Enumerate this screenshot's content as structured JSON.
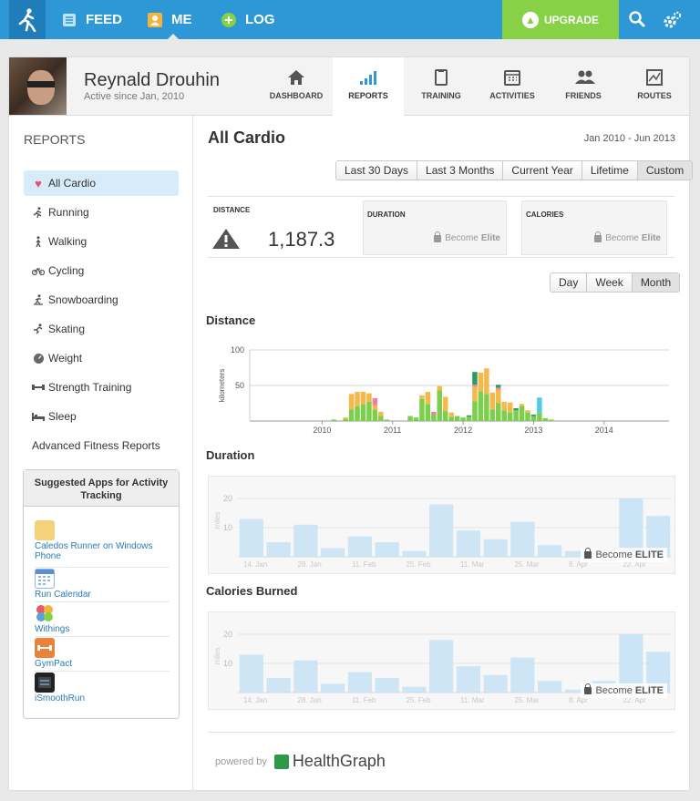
{
  "nav": {
    "feed": "FEED",
    "me": "ME",
    "log": "LOG",
    "upgrade": "UPGRADE"
  },
  "profile": {
    "name": "Reynald Drouhin",
    "since": "Active since Jan, 2010"
  },
  "tabs": [
    {
      "label": "DASHBOARD",
      "icon": "home-icon"
    },
    {
      "label": "REPORTS",
      "icon": "bars-icon",
      "active": true
    },
    {
      "label": "TRAINING",
      "icon": "clipboard-icon"
    },
    {
      "label": "ACTIVITIES",
      "icon": "calendar-icon"
    },
    {
      "label": "FRIENDS",
      "icon": "friends-icon"
    },
    {
      "label": "ROUTES",
      "icon": "map-icon"
    }
  ],
  "sidebar": {
    "title": "REPORTS",
    "items": [
      {
        "label": "All Cardio",
        "icon": "heart-icon"
      },
      {
        "label": "Running",
        "icon": "runner-icon"
      },
      {
        "label": "Walking",
        "icon": "walker-icon"
      },
      {
        "label": "Cycling",
        "icon": "bike-icon"
      },
      {
        "label": "Snowboarding",
        "icon": "snowboard-icon"
      },
      {
        "label": "Skating",
        "icon": "skater-icon"
      },
      {
        "label": "Weight",
        "icon": "scale-icon"
      },
      {
        "label": "Strength Training",
        "icon": "dumbbell-icon"
      },
      {
        "label": "Sleep",
        "icon": "bed-icon"
      }
    ],
    "advanced": "Advanced Fitness Reports",
    "apps_title": "Suggested Apps for Activity Tracking",
    "apps": [
      {
        "name": "Caledos Runner on Windows Phone",
        "color": "#f2d27a"
      },
      {
        "name": "Run Calendar",
        "color": "#8fb7e0"
      },
      {
        "name": "Withings",
        "color": "#e35e64"
      },
      {
        "name": "GymPact",
        "color": "#e9823a"
      },
      {
        "name": "iSmoothRun",
        "color": "#222222"
      }
    ]
  },
  "content": {
    "title": "All Cardio",
    "range": "Jan 2010 - Jun 2013",
    "range_buttons": [
      "Last 30 Days",
      "Last 3 Months",
      "Current Year",
      "Lifetime",
      "Custom"
    ],
    "period_buttons": [
      "Day",
      "Week",
      "Month"
    ],
    "stats": {
      "distance_label": "DISTANCE",
      "distance_value": "1,187.3",
      "duration_label": "DURATION",
      "calories_label": "CALORIES",
      "become": "Become",
      "elite": "Elite"
    },
    "sections": {
      "distance": "Distance",
      "duration": "Duration",
      "calories": "Calories Burned"
    },
    "become_elite": "Become",
    "elite_caps": "ELITE",
    "powered": "powered by",
    "healthgraph": "HealthGraph"
  },
  "chart_data": [
    {
      "type": "bar",
      "title": "Distance",
      "ylabel": "kilometers",
      "ylim": [
        0,
        100
      ],
      "yticks": [
        100,
        50
      ],
      "xticks": [
        "2010",
        "2011",
        "2012",
        "2013",
        "2014"
      ],
      "x_month_start": "2009-01",
      "colors": {
        "green": "#7ccf4c",
        "orange": "#f5b84a",
        "pink": "#ef7fa8",
        "teal": "#2d9b62",
        "cyan": "#51c9e8"
      },
      "series": [
        {
          "name": "green",
          "values": [
            [
              14,
              2
            ],
            [
              16,
              3
            ],
            [
              17,
              16
            ],
            [
              18,
              21
            ],
            [
              19,
              24
            ],
            [
              20,
              27
            ],
            [
              21,
              16
            ],
            [
              22,
              7
            ],
            [
              23,
              2
            ],
            [
              27,
              7
            ],
            [
              28,
              5
            ],
            [
              29,
              31
            ],
            [
              30,
              24
            ],
            [
              31,
              9
            ],
            [
              32,
              43
            ],
            [
              33,
              14
            ],
            [
              34,
              6
            ],
            [
              35,
              7
            ],
            [
              36,
              5
            ],
            [
              37,
              6
            ],
            [
              38,
              28
            ],
            [
              39,
              42
            ],
            [
              40,
              38
            ],
            [
              41,
              16
            ],
            [
              42,
              25
            ],
            [
              43,
              15
            ],
            [
              44,
              12
            ],
            [
              45,
              15
            ],
            [
              46,
              21
            ],
            [
              47,
              12
            ],
            [
              48,
              7
            ],
            [
              49,
              12
            ],
            [
              50,
              4
            ],
            [
              51,
              2
            ]
          ]
        },
        {
          "name": "orange",
          "values": [
            [
              16,
              2
            ],
            [
              17,
              22
            ],
            [
              18,
              20
            ],
            [
              19,
              17
            ],
            [
              20,
              12
            ],
            [
              21,
              6
            ],
            [
              22,
              6
            ],
            [
              29,
              5
            ],
            [
              30,
              17
            ],
            [
              32,
              6
            ],
            [
              33,
              20
            ],
            [
              34,
              6
            ],
            [
              38,
              20
            ],
            [
              39,
              26
            ],
            [
              40,
              36
            ],
            [
              41,
              24
            ],
            [
              42,
              19
            ],
            [
              43,
              12
            ],
            [
              44,
              14
            ],
            [
              46,
              3
            ],
            [
              47,
              3
            ]
          ]
        },
        {
          "name": "pink",
          "values": [
            [
              21,
              10
            ],
            [
              31,
              4
            ],
            [
              38,
              3
            ],
            [
              42,
              3
            ]
          ]
        },
        {
          "name": "teal",
          "values": [
            [
              37,
              2
            ],
            [
              38,
              18
            ],
            [
              42,
              4
            ],
            [
              45,
              3
            ],
            [
              48,
              2
            ]
          ]
        },
        {
          "name": "cyan",
          "values": [
            [
              49,
              21
            ]
          ]
        }
      ]
    },
    {
      "type": "bar",
      "title": "Duration",
      "ylabel": "miles",
      "ylim": [
        0,
        25
      ],
      "yticks": [
        20,
        10
      ],
      "categories": [
        "14. Jan",
        "",
        "28. Jan",
        "",
        "11. Feb",
        "",
        "25. Feb",
        "",
        "11. Mar",
        "",
        "25. Mar",
        "",
        "8. Apr",
        "",
        "22. Apr",
        ""
      ],
      "values": [
        13,
        5,
        11,
        3,
        7,
        5,
        2,
        18,
        9,
        6,
        12,
        4,
        2,
        3,
        20,
        14
      ]
    },
    {
      "type": "bar",
      "title": "Calories Burned",
      "ylabel": "miles",
      "ylim": [
        0,
        25
      ],
      "yticks": [
        20,
        10
      ],
      "categories": [
        "14. Jan",
        "",
        "28. Jan",
        "",
        "11. Feb",
        "",
        "25. Feb",
        "",
        "11. Mar",
        "",
        "25. Mar",
        "",
        "8. Apr",
        "",
        "22. Apr",
        ""
      ],
      "values": [
        13,
        5,
        11,
        3,
        7,
        5,
        2,
        18,
        9,
        6,
        12,
        4,
        1,
        4,
        20,
        14
      ]
    }
  ]
}
